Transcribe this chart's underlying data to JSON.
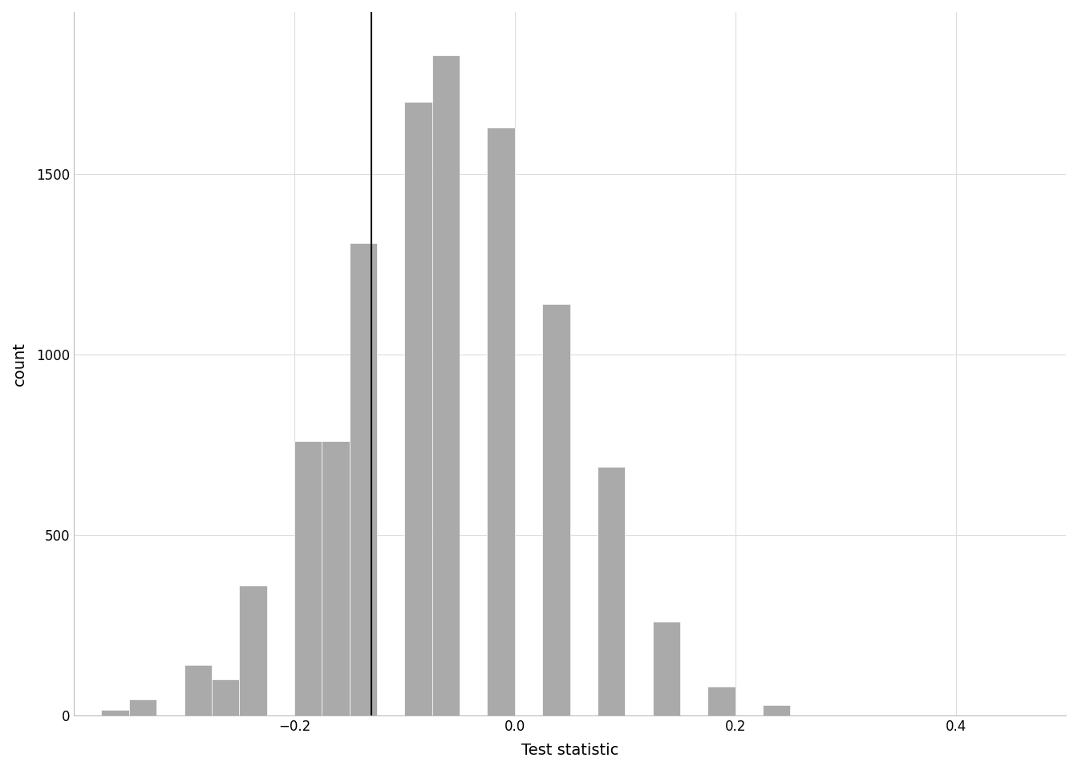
{
  "bar_left_edges": [
    -0.375,
    -0.35,
    -0.325,
    -0.3,
    -0.275,
    -0.25,
    -0.225,
    -0.2,
    -0.175,
    -0.15,
    -0.125,
    -0.1,
    -0.075,
    -0.05,
    -0.025,
    0.0,
    0.025,
    0.05,
    0.075,
    0.1,
    0.125,
    0.15,
    0.175,
    0.2,
    0.225,
    0.25,
    0.275,
    0.3
  ],
  "bar_heights": [
    0,
    15,
    0,
    45,
    0,
    0,
    140,
    100,
    360,
    0,
    760,
    760,
    0,
    1310,
    0,
    1700,
    1830,
    0,
    1630,
    1140,
    0,
    690,
    0,
    260,
    0,
    80,
    30,
    0
  ],
  "bar_width": 0.025,
  "bar_color": "#aaaaaa",
  "bar_edgecolor": "#ffffff",
  "vline_x": -0.13,
  "vline_color": "#000000",
  "vline_linewidth": 1.5,
  "xlabel": "Test statistic",
  "ylabel": "count",
  "xlim": [
    -0.4,
    0.5
  ],
  "ylim": [
    0,
    1950
  ],
  "xticks": [
    -0.2,
    0.0,
    0.2,
    0.4
  ],
  "yticks": [
    0,
    500,
    1000,
    1500
  ],
  "background_color": "#ffffff",
  "grid_color": "#dddddd",
  "xlabel_fontsize": 14,
  "ylabel_fontsize": 14,
  "tick_fontsize": 12
}
